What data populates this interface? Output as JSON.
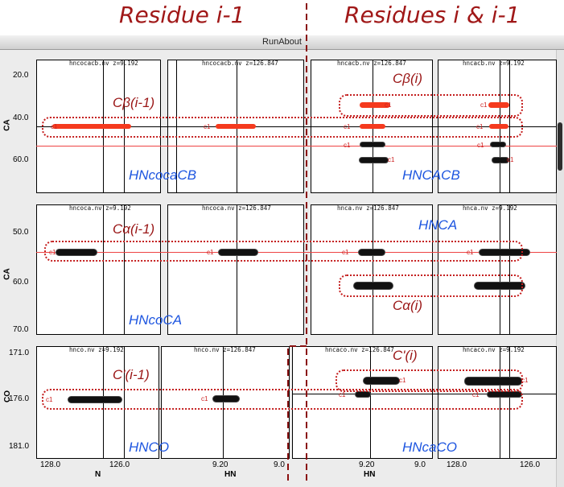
{
  "header": {
    "left_title": "Residue i-1",
    "right_title": "Residues i & i-1"
  },
  "window": {
    "title": "RunAbout"
  },
  "panel_titles": {
    "r1": [
      "hncocacb.nv z=9.192",
      "hncocacb.nv z=126.847",
      "hncacb.nv z=126.847",
      "hncacb.nv z=9.192"
    ],
    "r2": [
      "hncoca.nv z=9.192",
      "hncoca.nv z=126.847",
      "hnca.nv z=126.847",
      "hnca.nv z=9.192"
    ],
    "r3": [
      "hnco.nv z=9.192",
      "hnco.nv z=126.847",
      "hncaco.nv z=126.847",
      "hncaco.nv z=9.192"
    ]
  },
  "y_axes": {
    "r1": {
      "label": "CA",
      "ticks": [
        "20.0",
        "40.0",
        "60.0"
      ]
    },
    "r2": {
      "label": "CA",
      "ticks": [
        "50.0",
        "60.0",
        "70.0"
      ]
    },
    "r3": {
      "label": "CO",
      "ticks": [
        "171.0",
        "176.0",
        "181.0"
      ]
    }
  },
  "x_axes": {
    "n_label": "N",
    "hn_label": "HN",
    "ticks": [
      "128.0",
      "126.0",
      "9.20",
      "9.0",
      "9.20",
      "9.0",
      "128.0",
      "126.0"
    ]
  },
  "experiments": {
    "hncocacb": "HNcocaCB",
    "hncacb": "HNCACB",
    "hnca": "HNCA",
    "hncoca": "HNcoCA",
    "hnco": "HNCO",
    "hncaco": "HNcaCO"
  },
  "annotations": {
    "cb_prev": "Cβ(i-1)",
    "cb_i": "Cβ(i)",
    "ca_prev": "Cα(i-1)",
    "ca_i": "Cα(i)",
    "co_prev": "C'(i-1)",
    "co_i": "C'(i)"
  },
  "peak_label": "c1",
  "colors": {
    "title_red": "#a01818",
    "annotation_red": "#9a1616",
    "experiment_blue": "#1e56e0",
    "box_red": "#c41e1e",
    "peak_black": "#111111",
    "peak_red": "#f53a1e"
  }
}
